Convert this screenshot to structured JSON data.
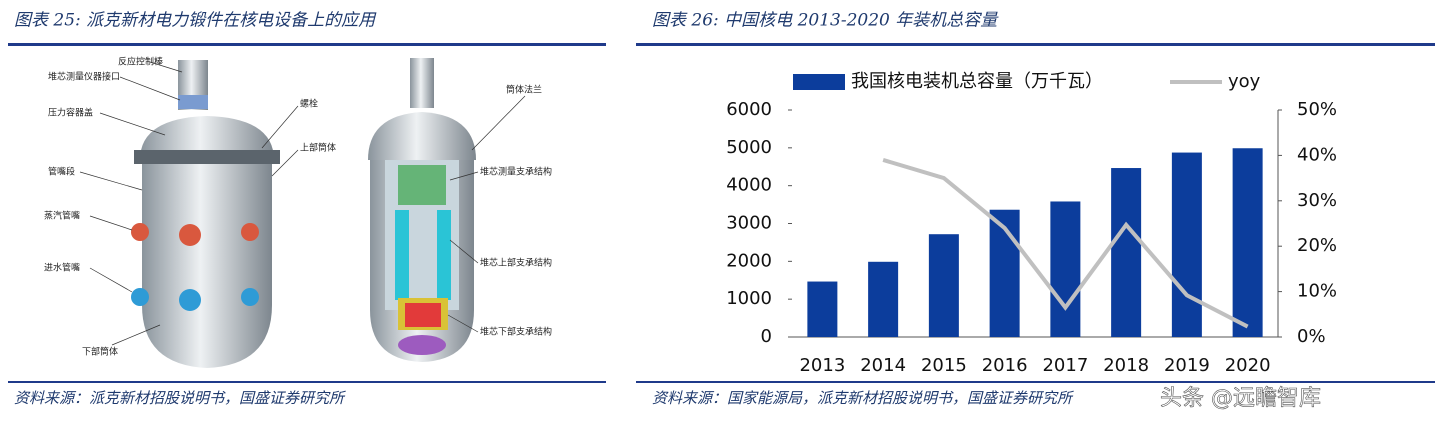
{
  "left_figure": {
    "title": "图表 25: 派克新材电力锻件在核电设备上的应用",
    "labels": [
      "反应控制棒",
      "堆芯测量仪器接口",
      "压力容器盖",
      "管嘴段",
      "蒸汽管嘴",
      "进水管嘴",
      "下部筒体",
      "螺栓",
      "上部筒体",
      "筒体法兰",
      "堆芯测量支承结构",
      "堆芯上部支承结构",
      "堆芯下部支承结构"
    ],
    "source": "资料来源：派克新材招股说明书，国盛证券研究所"
  },
  "chart_data": {
    "type": "bar-line",
    "title": "图表 26: 中国核电 2013-2020 年装机总容量",
    "categories": [
      "2013",
      "2014",
      "2015",
      "2016",
      "2017",
      "2018",
      "2019",
      "2020"
    ],
    "series": [
      {
        "name": "我国核电装机总容量（万千瓦）",
        "color": "#0c3d9c",
        "values": [
          1466,
          1988,
          2717,
          3364,
          3582,
          4466,
          4875,
          4989
        ]
      },
      {
        "name": "yoy",
        "color": "#c0c0c0",
        "axis": "y2",
        "values": [
          null,
          39,
          35,
          24,
          6.5,
          24.7,
          9.2,
          2.3
        ]
      }
    ],
    "ylim": [
      0,
      6000
    ],
    "yticks": [
      0,
      1000,
      2000,
      3000,
      4000,
      5000,
      6000
    ],
    "y2lim": [
      0,
      50
    ],
    "y2ticks": [
      {
        "value": 0,
        "label": "0%"
      },
      {
        "value": 10,
        "label": "10%"
      },
      {
        "value": 20,
        "label": "20%"
      },
      {
        "value": 30,
        "label": "30%"
      },
      {
        "value": 40,
        "label": "40%"
      },
      {
        "value": 50,
        "label": "50%"
      }
    ],
    "legend": "top",
    "source": "资料来源：国家能源局，派克新材招股说明书，国盛证券研究所"
  },
  "watermark": "头条 @远瞻智库"
}
